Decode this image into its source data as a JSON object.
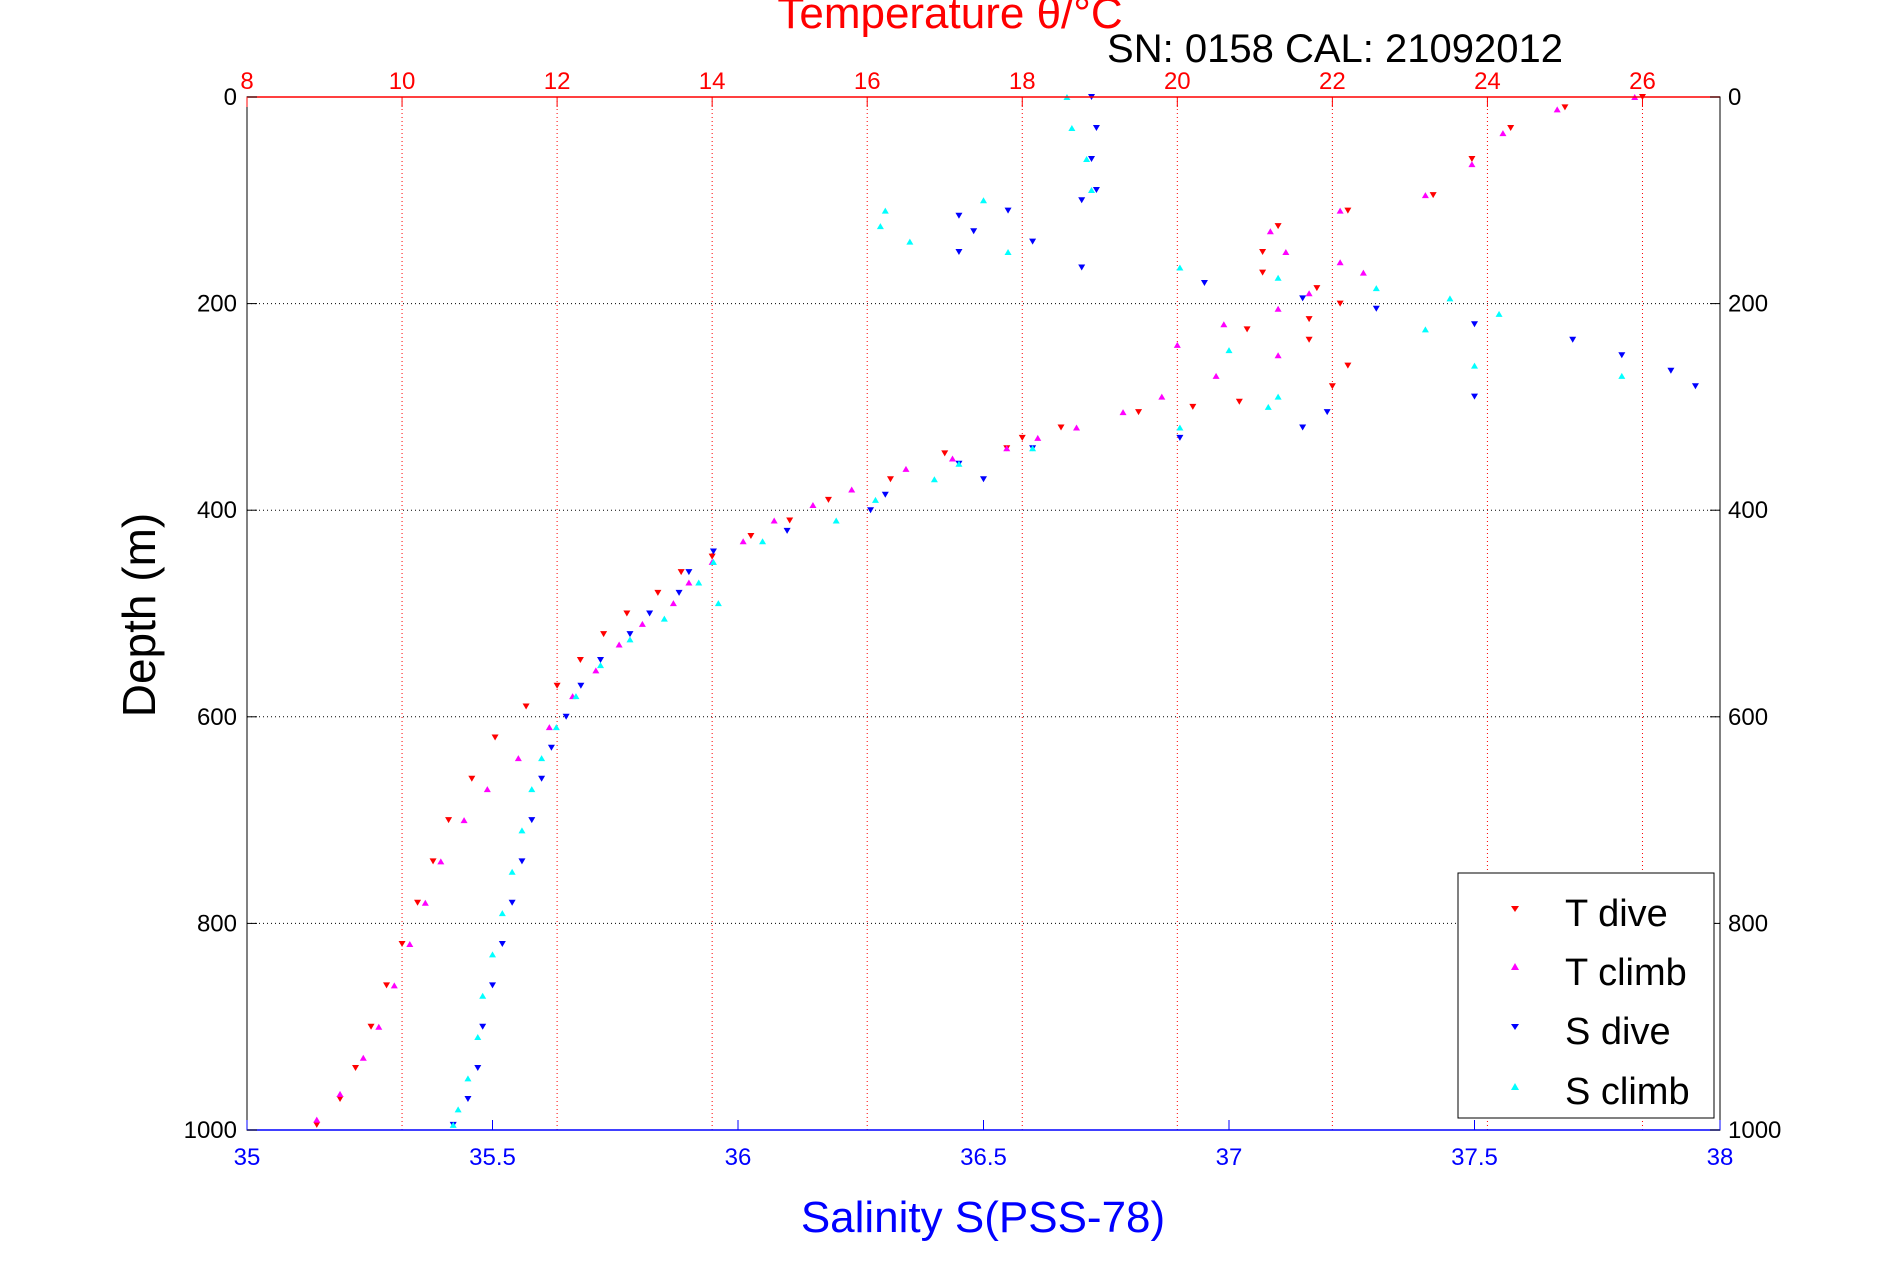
{
  "chart_data": {
    "type": "scatter",
    "title": "Temperature θ/°C",
    "subtitle": "SN: 0158  CAL: 21092012",
    "ylabel": "Depth (m)",
    "xlabel": "Salinity S(PSS-78)",
    "x_top_label": "Temperature θ/°C",
    "ylim": [
      0,
      1000
    ],
    "y_reversed": true,
    "x_bottom_lim": [
      35,
      38
    ],
    "x_top_lim": [
      8,
      27
    ],
    "y_ticks": [
      "0",
      "200",
      "400",
      "600",
      "800",
      "1000"
    ],
    "x_bottom_ticks": [
      "35",
      "35.5",
      "36",
      "36.5",
      "37",
      "37.5",
      "38"
    ],
    "x_top_ticks": [
      "8",
      "10",
      "12",
      "14",
      "16",
      "18",
      "20",
      "22",
      "24",
      "26"
    ],
    "grid": true,
    "legend_position": "bottom-right",
    "colors": {
      "temperature_axis": "#ff0000",
      "salinity_axis": "#0000ff",
      "grid_vertical": "#ff0000",
      "grid_horizontal": "#000000"
    },
    "series": [
      {
        "name": "T dive",
        "axis": "top",
        "color": "#ff0000",
        "marker": "triangle-down",
        "points": [
          [
            26.0,
            0
          ],
          [
            25.0,
            10
          ],
          [
            24.3,
            30
          ],
          [
            23.8,
            60
          ],
          [
            23.3,
            95
          ],
          [
            22.2,
            110
          ],
          [
            21.3,
            125
          ],
          [
            21.1,
            150
          ],
          [
            21.1,
            170
          ],
          [
            21.8,
            185
          ],
          [
            22.1,
            200
          ],
          [
            21.7,
            215
          ],
          [
            20.9,
            225
          ],
          [
            21.7,
            235
          ],
          [
            22.2,
            260
          ],
          [
            22.0,
            280
          ],
          [
            20.8,
            295
          ],
          [
            20.2,
            300
          ],
          [
            19.5,
            305
          ],
          [
            18.5,
            320
          ],
          [
            18.0,
            330
          ],
          [
            17.8,
            340
          ],
          [
            17.0,
            345
          ],
          [
            16.3,
            370
          ],
          [
            15.5,
            390
          ],
          [
            15.0,
            410
          ],
          [
            14.5,
            425
          ],
          [
            14.0,
            445
          ],
          [
            13.6,
            460
          ],
          [
            13.3,
            480
          ],
          [
            12.9,
            500
          ],
          [
            12.6,
            520
          ],
          [
            12.3,
            545
          ],
          [
            12.0,
            570
          ],
          [
            11.6,
            590
          ],
          [
            11.2,
            620
          ],
          [
            10.9,
            660
          ],
          [
            10.6,
            700
          ],
          [
            10.4,
            740
          ],
          [
            10.2,
            780
          ],
          [
            10.0,
            820
          ],
          [
            9.8,
            860
          ],
          [
            9.6,
            900
          ],
          [
            9.4,
            940
          ],
          [
            9.2,
            970
          ],
          [
            8.9,
            995
          ]
        ]
      },
      {
        "name": "T climb",
        "axis": "top",
        "color": "#ff00ff",
        "marker": "triangle-up",
        "points": [
          [
            25.9,
            0
          ],
          [
            24.9,
            12
          ],
          [
            24.2,
            35
          ],
          [
            23.8,
            65
          ],
          [
            23.2,
            95
          ],
          [
            22.1,
            110
          ],
          [
            21.2,
            130
          ],
          [
            21.4,
            150
          ],
          [
            22.1,
            160
          ],
          [
            22.4,
            170
          ],
          [
            21.7,
            190
          ],
          [
            21.3,
            205
          ],
          [
            20.6,
            220
          ],
          [
            20.0,
            240
          ],
          [
            21.3,
            250
          ],
          [
            20.5,
            270
          ],
          [
            19.8,
            290
          ],
          [
            19.3,
            305
          ],
          [
            18.7,
            320
          ],
          [
            18.2,
            330
          ],
          [
            17.8,
            340
          ],
          [
            17.1,
            350
          ],
          [
            16.5,
            360
          ],
          [
            15.8,
            380
          ],
          [
            15.3,
            395
          ],
          [
            14.8,
            410
          ],
          [
            14.4,
            430
          ],
          [
            14.0,
            450
          ],
          [
            13.7,
            470
          ],
          [
            13.5,
            490
          ],
          [
            13.1,
            510
          ],
          [
            12.8,
            530
          ],
          [
            12.5,
            555
          ],
          [
            12.2,
            580
          ],
          [
            11.9,
            610
          ],
          [
            11.5,
            640
          ],
          [
            11.1,
            670
          ],
          [
            10.8,
            700
          ],
          [
            10.5,
            740
          ],
          [
            10.3,
            780
          ],
          [
            10.1,
            820
          ],
          [
            9.9,
            860
          ],
          [
            9.7,
            900
          ],
          [
            9.5,
            930
          ],
          [
            9.2,
            965
          ],
          [
            8.9,
            990
          ]
        ]
      },
      {
        "name": "S dive",
        "axis": "bottom",
        "color": "#0000ff",
        "marker": "triangle-down",
        "points": [
          [
            36.72,
            0
          ],
          [
            36.73,
            30
          ],
          [
            36.72,
            60
          ],
          [
            36.73,
            90
          ],
          [
            36.7,
            100
          ],
          [
            36.55,
            110
          ],
          [
            36.45,
            115
          ],
          [
            36.48,
            130
          ],
          [
            36.6,
            140
          ],
          [
            36.45,
            150
          ],
          [
            36.7,
            165
          ],
          [
            36.95,
            180
          ],
          [
            37.15,
            195
          ],
          [
            37.3,
            205
          ],
          [
            37.5,
            220
          ],
          [
            37.7,
            235
          ],
          [
            37.8,
            250
          ],
          [
            37.9,
            265
          ],
          [
            37.95,
            280
          ],
          [
            37.5,
            290
          ],
          [
            37.2,
            305
          ],
          [
            37.15,
            320
          ],
          [
            36.9,
            330
          ],
          [
            36.6,
            340
          ],
          [
            36.45,
            355
          ],
          [
            36.5,
            370
          ],
          [
            36.3,
            385
          ],
          [
            36.27,
            400
          ],
          [
            36.1,
            420
          ],
          [
            35.95,
            440
          ],
          [
            35.9,
            460
          ],
          [
            35.88,
            480
          ],
          [
            35.82,
            500
          ],
          [
            35.78,
            520
          ],
          [
            35.72,
            545
          ],
          [
            35.68,
            570
          ],
          [
            35.65,
            600
          ],
          [
            35.62,
            630
          ],
          [
            35.6,
            660
          ],
          [
            35.58,
            700
          ],
          [
            35.56,
            740
          ],
          [
            35.54,
            780
          ],
          [
            35.52,
            820
          ],
          [
            35.5,
            860
          ],
          [
            35.48,
            900
          ],
          [
            35.47,
            940
          ],
          [
            35.45,
            970
          ],
          [
            35.42,
            995
          ]
        ]
      },
      {
        "name": "S climb",
        "axis": "bottom",
        "color": "#00ffff",
        "marker": "triangle-up",
        "points": [
          [
            36.67,
            0
          ],
          [
            36.68,
            30
          ],
          [
            36.71,
            60
          ],
          [
            36.72,
            90
          ],
          [
            36.5,
            100
          ],
          [
            36.3,
            110
          ],
          [
            36.29,
            125
          ],
          [
            36.35,
            140
          ],
          [
            36.55,
            150
          ],
          [
            36.9,
            165
          ],
          [
            37.1,
            175
          ],
          [
            37.3,
            185
          ],
          [
            37.45,
            195
          ],
          [
            37.55,
            210
          ],
          [
            37.4,
            225
          ],
          [
            37.0,
            245
          ],
          [
            37.5,
            260
          ],
          [
            37.8,
            270
          ],
          [
            37.1,
            290
          ],
          [
            37.08,
            300
          ],
          [
            36.9,
            320
          ],
          [
            36.6,
            340
          ],
          [
            36.45,
            355
          ],
          [
            36.4,
            370
          ],
          [
            36.28,
            390
          ],
          [
            36.2,
            410
          ],
          [
            36.05,
            430
          ],
          [
            35.95,
            450
          ],
          [
            35.92,
            470
          ],
          [
            35.96,
            490
          ],
          [
            35.85,
            505
          ],
          [
            35.78,
            525
          ],
          [
            35.72,
            550
          ],
          [
            35.67,
            580
          ],
          [
            35.63,
            610
          ],
          [
            35.6,
            640
          ],
          [
            35.58,
            670
          ],
          [
            35.56,
            710
          ],
          [
            35.54,
            750
          ],
          [
            35.52,
            790
          ],
          [
            35.5,
            830
          ],
          [
            35.48,
            870
          ],
          [
            35.47,
            910
          ],
          [
            35.45,
            950
          ],
          [
            35.43,
            980
          ],
          [
            35.42,
            995
          ]
        ]
      }
    ]
  }
}
